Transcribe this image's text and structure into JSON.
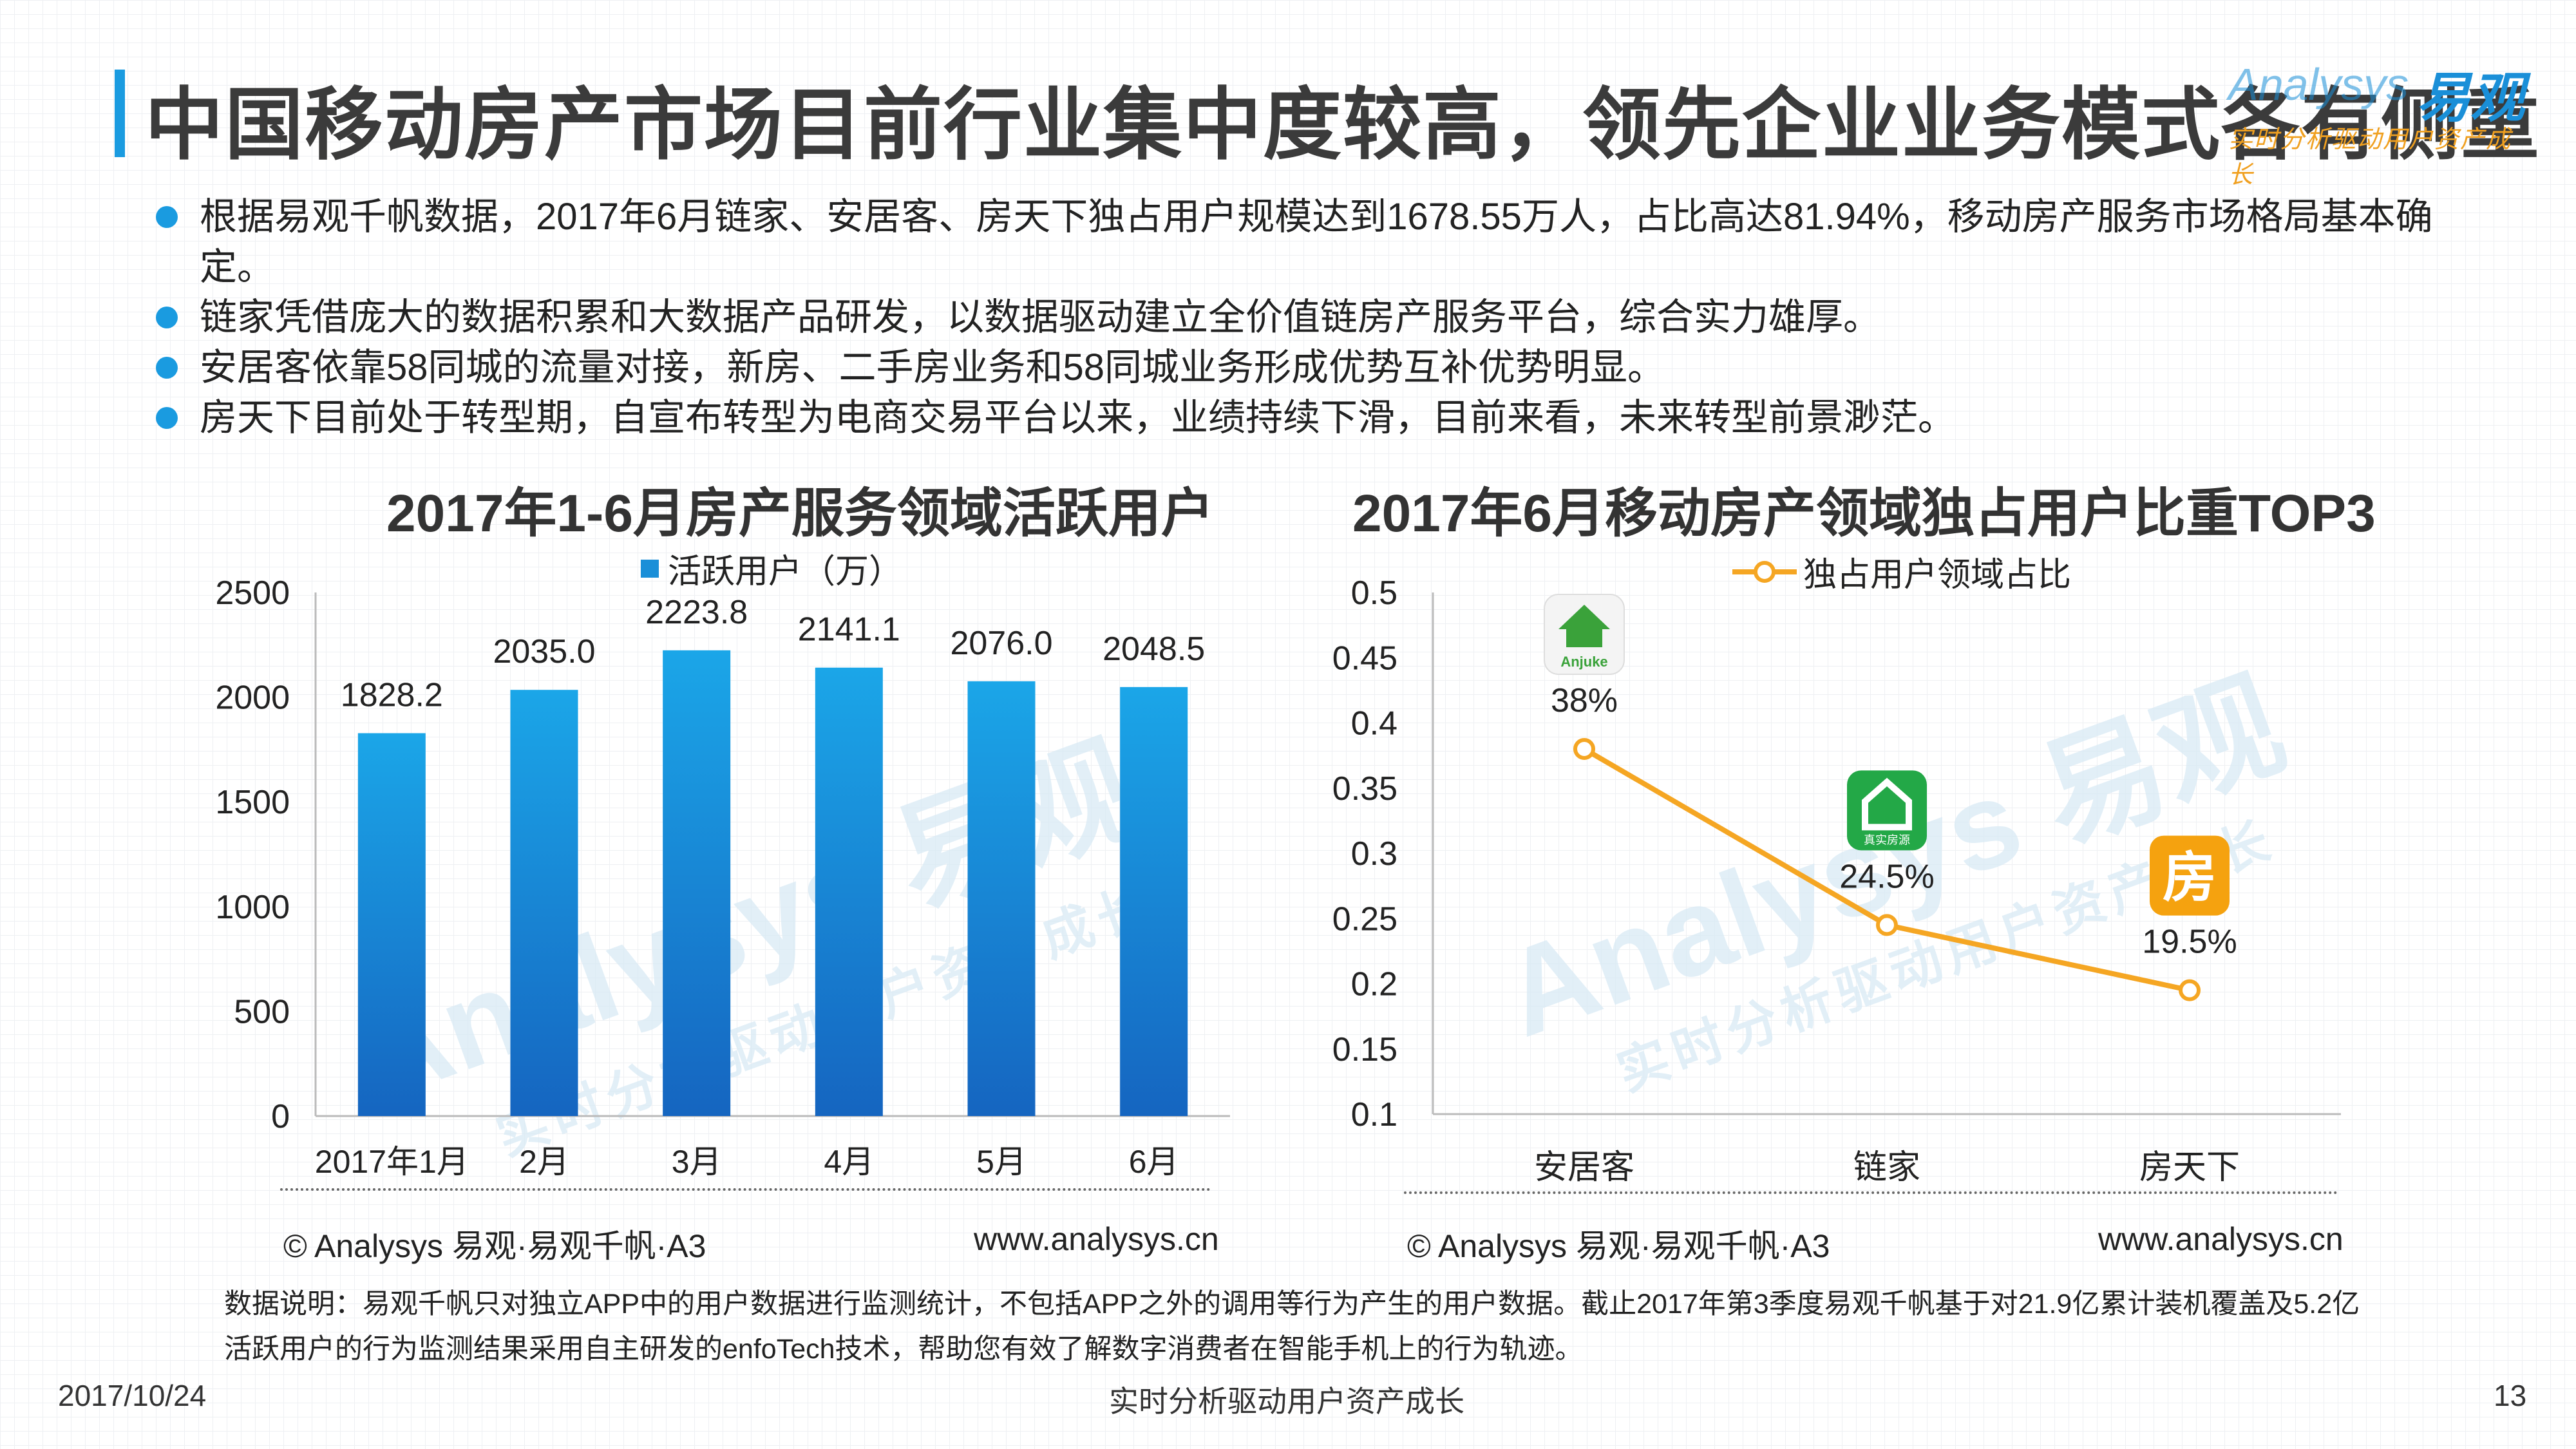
{
  "page": {
    "title": "中国移动房产市场目前行业集中度较高，领先企业业务模式各有侧重",
    "logo_main": "易观",
    "logo_en": "Analysys",
    "logo_sub": "实时分析驱动用户资产成长",
    "bullets": [
      "根据易观千帆数据，2017年6月链家、安居客、房天下独占用户规模达到1678.55万人，占比高达81.94%，移动房产服务市场格局基本确定。",
      "链家凭借庞大的数据积累和大数据产品研发，以数据驱动建立全价值链房产服务平台，综合实力雄厚。",
      "安居客依靠58同城的流量对接，新房、二手房业务和58同城业务形成优势互补优势明显。",
      "房天下目前处于转型期，自宣布转型为电商交易平台以来，业绩持续下滑，目前来看，未来转型前景渺茫。"
    ],
    "source_left": "© Analysys 易观·易观千帆·A3",
    "site_left": "www.analysys.cn",
    "source_right": "© Analysys 易观·易观千帆·A3",
    "site_right": "www.analysys.cn",
    "note": "数据说明：易观千帆只对独立APP中的用户数据进行监测统计，不包括APP之外的调用等行为产生的用户数据。截止2017年第3季度易观千帆基于对21.9亿累计装机覆盖及5.2亿活跃用户的行为监测结果采用自主研发的enfoTech技术，帮助您有效了解数字消费者在智能手机上的行为轨迹。",
    "date": "2017/10/24",
    "slogan": "实时分析驱动用户资产成长",
    "page_number": "13",
    "watermark_en": "Analysys 易观",
    "watermark_cn": "实时分析驱动用户资产成长"
  },
  "chart_data": [
    {
      "type": "bar",
      "title": "2017年1-6月房产服务领域活跃用户",
      "categories": [
        "2017年1月",
        "2月",
        "3月",
        "4月",
        "5月",
        "6月"
      ],
      "series": [
        {
          "name": "活跃用户（万）",
          "values": [
            1828.2,
            2035.0,
            2223.8,
            2141.1,
            2076.0,
            2048.5
          ]
        }
      ],
      "data_labels": [
        "1828.2",
        "2035.0",
        "2223.8",
        "2141.1",
        "2076.0",
        "2048.5"
      ],
      "ylim": [
        0,
        2500
      ],
      "yticks": [
        "0",
        "500",
        "1000",
        "1500",
        "2000",
        "2500"
      ],
      "grid": false,
      "legend": "top",
      "bar_color_top": "#1ba6e8",
      "bar_color_bottom": "#1565c0"
    },
    {
      "type": "line",
      "title": "2017年6月移动房产领域独占用户比重TOP3",
      "categories": [
        "安居客",
        "链家",
        "房天下"
      ],
      "series": [
        {
          "name": "独占用户领域占比",
          "values": [
            0.38,
            0.245,
            0.195
          ]
        }
      ],
      "data_labels": [
        "38%",
        "24.5%",
        "19.5%"
      ],
      "ylim": [
        0.1,
        0.5
      ],
      "yticks": [
        "0.1",
        "0.15",
        "0.2",
        "0.25",
        "0.3",
        "0.35",
        "0.4",
        "0.45",
        "0.5"
      ],
      "grid": false,
      "legend": "top",
      "line_color": "#f5a623",
      "icons": [
        "anjuke-app-icon",
        "lianjia-app-icon",
        "fangtianxia-app-icon"
      ],
      "icon_labels": [
        "Anjuke",
        "真实房源",
        "房"
      ],
      "icon_colors": [
        "#3aa23a",
        "#23a847",
        "#f5a20f"
      ]
    }
  ]
}
